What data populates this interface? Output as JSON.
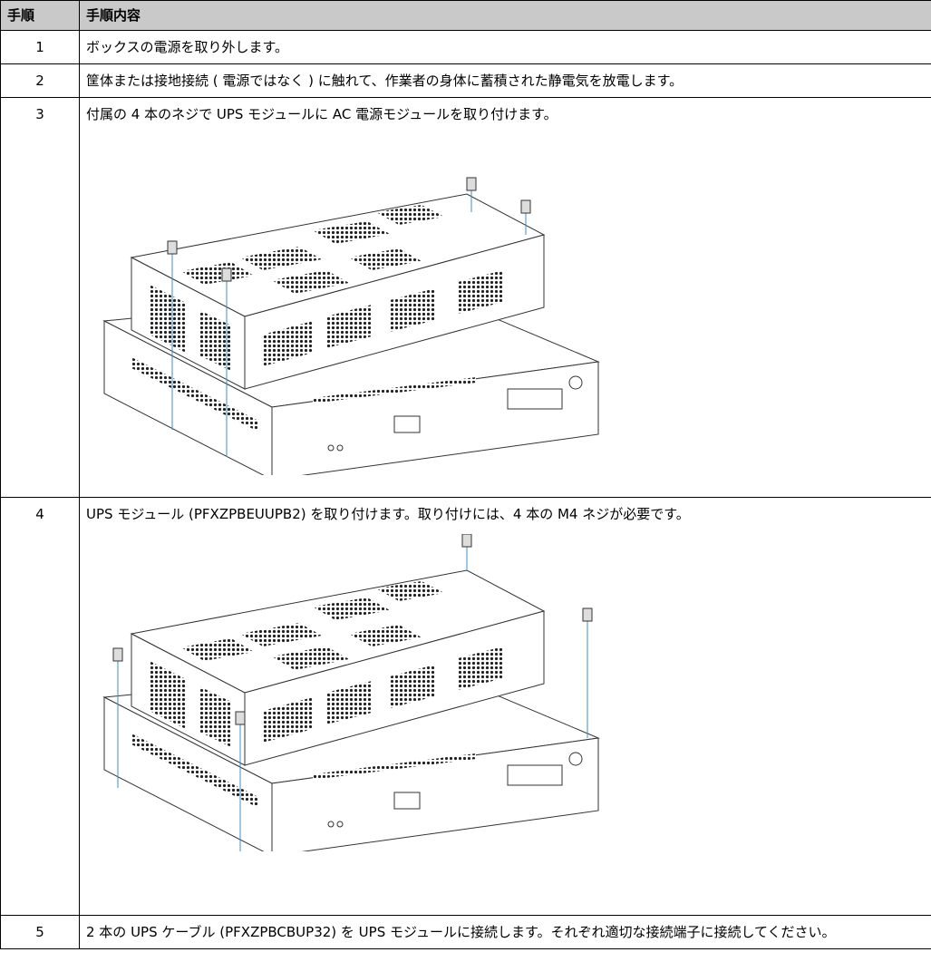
{
  "table": {
    "header": [
      "手順",
      "手順内容"
    ],
    "rows": [
      [
        "1",
        "ボックスの電源を取り外します。"
      ],
      [
        "2",
        "筐体または接地接続 ( 電源ではなく ) に触れて、作業者の身体に蓄積された静電気を放電します。"
      ],
      [
        "3",
        "付属の 4 本のネジで UPS モジュールに AC 電源モジュールを取り付けます。"
      ],
      [
        "4",
        "UPS モジュール (PFXZPBEUUPB2) を取り付けます。取り付けには、4 本の M4 ネジが必要です。"
      ],
      [
        "5",
        "2 本の UPS ケーブル (PFXZPBCBUP32) を UPS モジュールに接続します。それぞれ適切な接続端子に接続してください。"
      ]
    ]
  }
}
